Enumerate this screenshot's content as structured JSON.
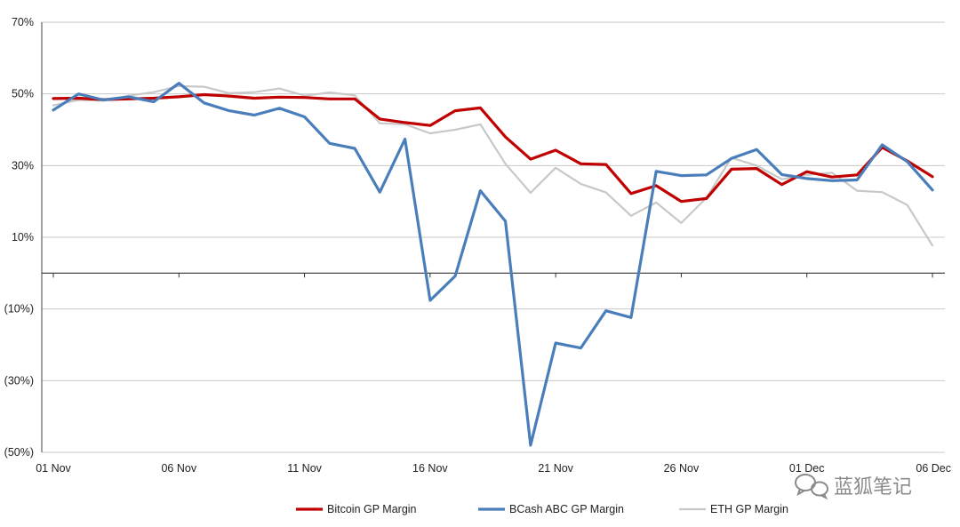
{
  "chart_data": {
    "type": "line",
    "title": "",
    "xlabel": "",
    "ylabel": "",
    "ylim": [
      -50,
      70
    ],
    "yticks": [
      70,
      50,
      30,
      10,
      -10,
      -30,
      -50
    ],
    "ytick_labels": [
      "70%",
      "50%",
      "30%",
      "10%",
      "(10%)",
      "(30%)",
      "(50%)"
    ],
    "x_start": "2017-11-01",
    "x": [
      "01 Nov",
      "02 Nov",
      "03 Nov",
      "04 Nov",
      "05 Nov",
      "06 Nov",
      "07 Nov",
      "08 Nov",
      "09 Nov",
      "10 Nov",
      "11 Nov",
      "12 Nov",
      "13 Nov",
      "14 Nov",
      "15 Nov",
      "16 Nov",
      "17 Nov",
      "18 Nov",
      "19 Nov",
      "20 Nov",
      "21 Nov",
      "22 Nov",
      "23 Nov",
      "24 Nov",
      "25 Nov",
      "26 Nov",
      "27 Nov",
      "28 Nov",
      "29 Nov",
      "30 Nov",
      "01 Dec",
      "02 Dec",
      "03 Dec",
      "04 Dec",
      "05 Dec",
      "06 Dec"
    ],
    "xtick_labels": [
      "01 Nov",
      "06 Nov",
      "11 Nov",
      "16 Nov",
      "21 Nov",
      "26 Nov",
      "01 Dec",
      "06 Dec"
    ],
    "grid": true,
    "legend_position": "bottom",
    "series": [
      {
        "name": "Bitcoin GP Margin",
        "color": "#c00000",
        "values": [
          48.7,
          48.8,
          48.4,
          48.6,
          48.8,
          49.2,
          49.8,
          49.4,
          48.8,
          49.1,
          49.0,
          48.6,
          48.6,
          43.0,
          42.0,
          41.2,
          45.3,
          46.1,
          38.0,
          31.8,
          34.3,
          30.5,
          30.3,
          22.2,
          24.4,
          20.0,
          20.8,
          29.0,
          29.2,
          24.7,
          28.3,
          26.8,
          27.4,
          35.1,
          31.3,
          26.9
        ]
      },
      {
        "name": "BCash ABC GP Margin",
        "color": "#4a7ebb",
        "values": [
          45.5,
          50.0,
          48.3,
          49.2,
          47.8,
          53.0,
          47.5,
          45.3,
          44.1,
          46.0,
          43.6,
          36.2,
          34.8,
          22.6,
          37.4,
          -7.6,
          -0.8,
          23.0,
          14.5,
          -48.0,
          -19.5,
          -20.9,
          -10.5,
          -12.4,
          28.4,
          27.2,
          27.4,
          32.0,
          34.5,
          27.5,
          26.4,
          25.8,
          26.0,
          35.8,
          31.1,
          23.2
        ]
      },
      {
        "name": "ETH GP Margin",
        "color": "#c8c8c8",
        "values": [
          46.8,
          48.3,
          48.1,
          49.5,
          50.5,
          52.2,
          52.0,
          50.2,
          50.5,
          51.5,
          49.5,
          50.4,
          49.6,
          41.8,
          41.5,
          39.0,
          40.0,
          41.5,
          30.5,
          22.4,
          29.4,
          24.9,
          22.5,
          16.0,
          19.7,
          14.0,
          21.0,
          32.2,
          30.0,
          26.2,
          27.4,
          28.0,
          23.0,
          22.6,
          19.0,
          7.7
        ]
      }
    ]
  },
  "watermark": {
    "text": "蓝狐笔记",
    "icon": "wechat-icon"
  }
}
